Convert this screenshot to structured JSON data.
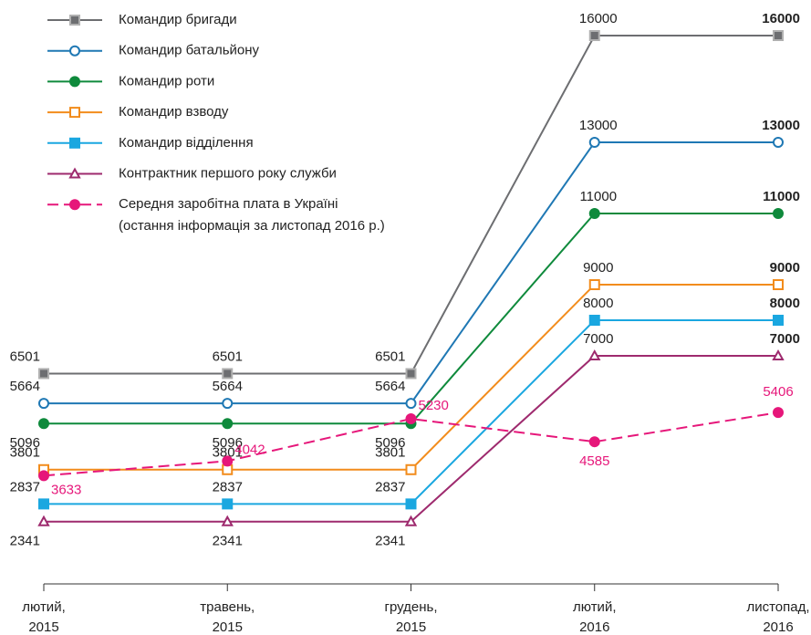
{
  "chart_data": {
    "type": "line",
    "categories": [
      [
        "лютий,",
        "2015"
      ],
      [
        "травень,",
        "2015"
      ],
      [
        "грудень,",
        "2015"
      ],
      [
        "лютий,",
        "2016"
      ],
      [
        "листопад,",
        "2016"
      ]
    ],
    "ylim": [
      590,
      16000
    ],
    "series": [
      {
        "name": "Командир бригади",
        "color": "#6d6e71",
        "marker": "square-filled",
        "values": [
          6501,
          6501,
          6501,
          16000,
          16000
        ]
      },
      {
        "name": "Командир батальйону",
        "color": "#1f78b4",
        "marker": "circle-open",
        "values": [
          5664,
          5664,
          5664,
          13000,
          13000
        ]
      },
      {
        "name": "Командир роти",
        "color": "#0f8a3c",
        "marker": "circle-filled",
        "values": [
          5096,
          5096,
          5096,
          11000,
          11000
        ]
      },
      {
        "name": "Командир взводу",
        "color": "#f28c1c",
        "marker": "square-open",
        "values": [
          3801,
          3801,
          3801,
          9000,
          9000
        ]
      },
      {
        "name": "Командир відділення",
        "color": "#1aa7e0",
        "marker": "square-filled",
        "values": [
          2837,
          2837,
          2837,
          8000,
          8000
        ]
      },
      {
        "name": "Контрактник першого року служби",
        "color": "#9e2a6e",
        "marker": "triangle-open",
        "values": [
          2341,
          2341,
          2341,
          7000,
          7000
        ]
      },
      {
        "name": [
          "Середня заробітна плата в Україні",
          "(остання інформація за листопад 2016 р.)"
        ],
        "color": "#e6177a",
        "marker": "circle-filled",
        "dashed": true,
        "values": [
          3633,
          4042,
          5230,
          4585,
          5406
        ]
      }
    ]
  }
}
